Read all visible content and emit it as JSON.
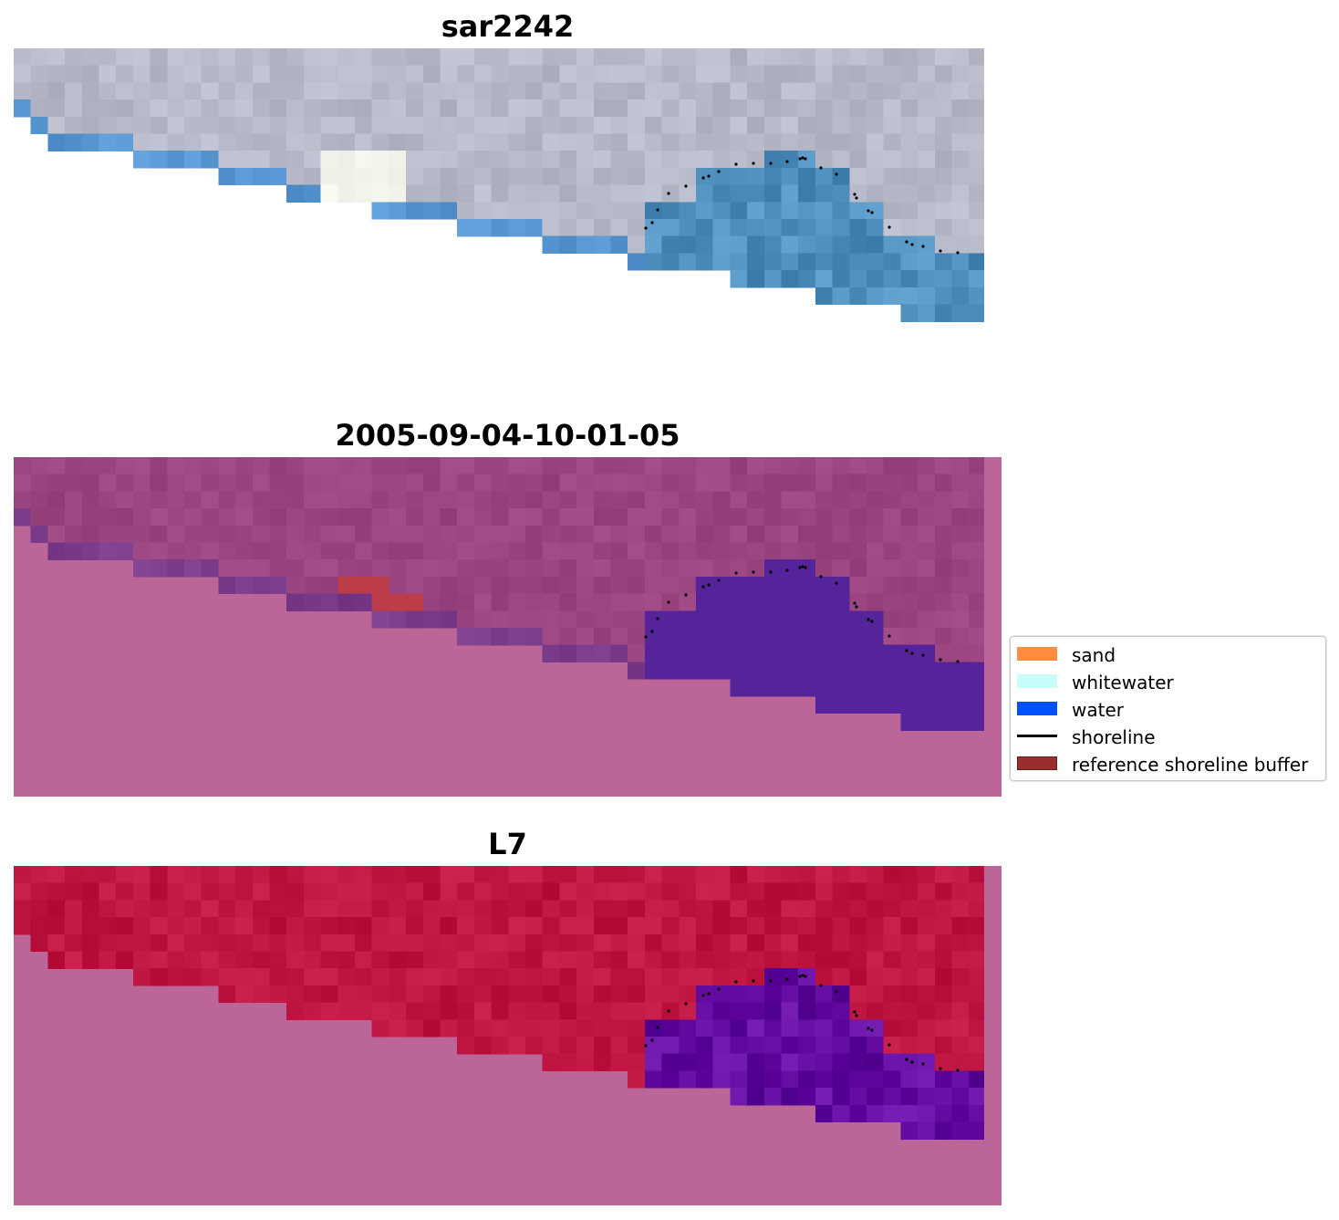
{
  "panels": [
    {
      "title": "sar2242",
      "style": "rgb"
    },
    {
      "title": "2005-09-04-10-01-05",
      "style": "classified"
    },
    {
      "title": "L7",
      "style": "ndwi"
    }
  ],
  "legend": {
    "items": [
      {
        "label": "sand",
        "type": "patch",
        "color": "#ff8c3f"
      },
      {
        "label": "whitewater",
        "type": "patch",
        "color": "#c8fdfc"
      },
      {
        "label": "water",
        "type": "patch",
        "color": "#0050ff"
      },
      {
        "label": "shoreline",
        "type": "line",
        "color": "#000000"
      },
      {
        "label": "reference shoreline buffer",
        "type": "patch",
        "color": "#9b2d2d",
        "edge": "#6b1b1b"
      }
    ]
  },
  "colors": {
    "nodata": "#bb6598",
    "rgb_land": "#b8b9c8",
    "rgb_water": "#4f8fbd",
    "rgb_white": "#f5f7ee",
    "classified_land": "#9a4580",
    "classified_water": "#55249b",
    "classified_buffer": "#bd3c4a",
    "ndwi_land": "#bd1440",
    "ndwi_water": "#620aa0"
  }
}
